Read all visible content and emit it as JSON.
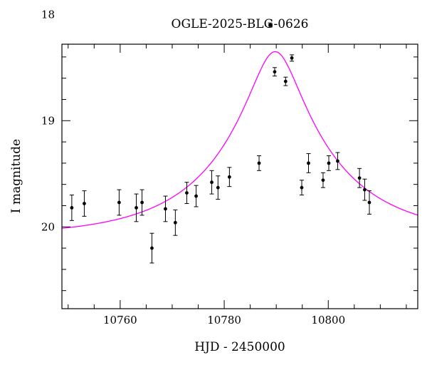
{
  "chart_data": {
    "type": "scatter",
    "title": "OGLE-2025-BLG-0626",
    "xlabel": "HJD - 2450000",
    "ylabel": "I magnitude",
    "xlim": [
      10748.8,
      10817.2
    ],
    "ylim": [
      20.77,
      18.28
    ],
    "y_inverted": true,
    "grid": false,
    "x_ticks": [
      10760,
      10780,
      10800
    ],
    "y_ticks": [
      18,
      19,
      20
    ],
    "x_minor_step": 5,
    "y_minor_step": 0.2,
    "colors": {
      "points": "#000000",
      "model": "#ff00ff",
      "frame": "#000000"
    },
    "series": [
      {
        "type": "scatter",
        "x": [
          10750.7,
          10753.1,
          10759.8,
          10763.1,
          10764.2,
          10766.1,
          10768.7,
          10770.6,
          10772.8,
          10774.6,
          10777.6,
          10778.8,
          10781.0,
          10786.7,
          10788.8,
          10789.7,
          10791.8,
          10793.0,
          10794.9,
          10796.2,
          10799.0,
          10800.1,
          10801.8,
          10806.0,
          10807.0,
          10807.9
        ],
        "y": [
          19.82,
          19.78,
          19.77,
          19.82,
          19.77,
          20.2,
          19.83,
          19.96,
          19.68,
          19.71,
          19.58,
          19.63,
          19.53,
          19.4,
          18.1,
          18.54,
          18.63,
          18.41,
          19.63,
          19.4,
          19.56,
          19.4,
          19.38,
          19.54,
          19.65,
          19.77
        ],
        "yerr": [
          0.12,
          0.12,
          0.12,
          0.13,
          0.12,
          0.14,
          0.12,
          0.12,
          0.1,
          0.1,
          0.11,
          0.11,
          0.09,
          0.07,
          0.02,
          0.04,
          0.04,
          0.03,
          0.07,
          0.09,
          0.07,
          0.07,
          0.08,
          0.09,
          0.1,
          0.11
        ]
      },
      {
        "type": "line",
        "model": "point-lens",
        "baseline_mag": 20.09,
        "peak_mag": 18.35,
        "t0": 10789.8,
        "tE": 22
      }
    ]
  }
}
